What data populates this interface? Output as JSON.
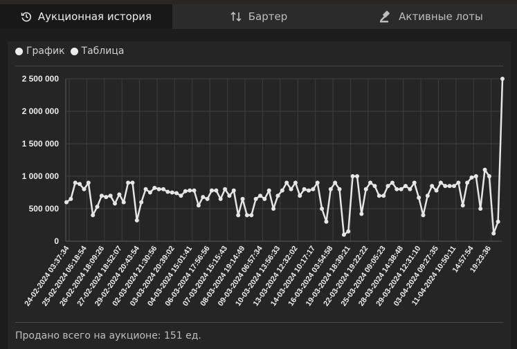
{
  "tabs": [
    {
      "label": "Аукционная история",
      "icon": "history-icon",
      "active": true
    },
    {
      "label": "Бартер",
      "icon": "swap-icon",
      "active": false
    },
    {
      "label": "Активные лоты",
      "icon": "gavel-icon",
      "active": false
    }
  ],
  "view_options": {
    "chart_label": "График",
    "table_label": "Таблица"
  },
  "footer": {
    "text": "Продано всего на аукционе: 151 ед."
  },
  "colors": {
    "line": "#e6e6e6",
    "grid": "#3e3e3e",
    "background": "#252525"
  },
  "chart_data": {
    "type": "line",
    "title": "",
    "xlabel": "",
    "ylabel": "",
    "ylim": [
      0,
      2500000
    ],
    "yticks": [
      0,
      500000,
      1000000,
      1500000,
      2000000,
      2500000
    ],
    "ytick_labels": [
      "0",
      "500 000",
      "1 000 000",
      "1 500 000",
      "2 000 000",
      "2 500 000"
    ],
    "grid": true,
    "legend": "none",
    "xtick_labels": [
      "24-02-2024 03:37:34",
      "25-02-2024 05:18:54",
      "26-02-2024 18:09:26",
      "27-02-2024 18:52:07",
      "29-02-2024 20:43:54",
      "02-03-2024 21:30:56",
      "03-03-2024 20:39:02",
      "04-03-2024 15:01:41",
      "06-03-2024 17:56:56",
      "07-03-2024 15:15:43",
      "08-03-2024 19:14:49",
      "09-03-2024 06:57:34",
      "10-03-2024 13:56:33",
      "13-03-2024 12:32:02",
      "14-03-2024 10:17:17",
      "16-03-2024 03:54:58",
      "19-03-2024 18:39:21",
      "22-03-2024 19:22:22",
      "25-03-2024 09:05:23",
      "28-03-2024 14:38:48",
      "29-03-2024 12:31:10",
      "03-04-2024 09:27:35",
      "11-04-2024 10:50:11",
      "14:57:54",
      "19:23:36"
    ],
    "values": [
      600000,
      650000,
      900000,
      880000,
      800000,
      900000,
      400000,
      530000,
      700000,
      680000,
      700000,
      580000,
      720000,
      600000,
      900000,
      900000,
      320000,
      600000,
      800000,
      750000,
      820000,
      800000,
      800000,
      760000,
      750000,
      740000,
      700000,
      770000,
      780000,
      780000,
      550000,
      680000,
      650000,
      780000,
      780000,
      650000,
      800000,
      700000,
      780000,
      400000,
      650000,
      400000,
      400000,
      650000,
      700000,
      650000,
      780000,
      500000,
      700000,
      780000,
      900000,
      800000,
      900000,
      700000,
      800000,
      780000,
      800000,
      900000,
      500000,
      300000,
      800000,
      900000,
      800000,
      100000,
      150000,
      1000000,
      1000000,
      420000,
      800000,
      900000,
      850000,
      700000,
      700000,
      850000,
      900000,
      800000,
      800000,
      850000,
      800000,
      900000,
      670000,
      400000,
      700000,
      850000,
      780000,
      900000,
      850000,
      850000,
      850000,
      900000,
      550000,
      900000,
      980000,
      1000000,
      500000,
      1100000,
      1000000,
      120000,
      300000,
      2500000
    ]
  }
}
